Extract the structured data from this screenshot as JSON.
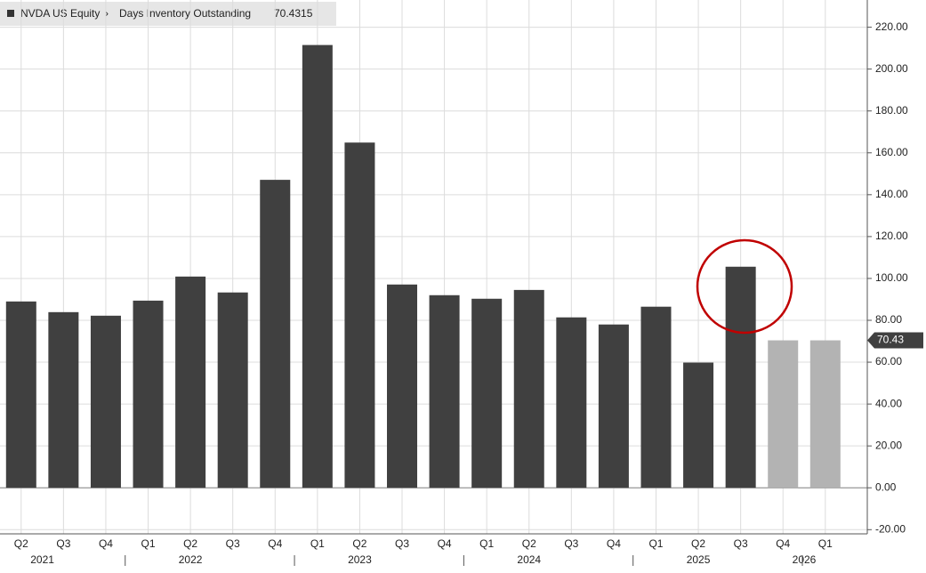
{
  "chart_data": {
    "type": "bar",
    "title": "NVDA US Equity",
    "subtitle": "Days Inventory Outstanding",
    "current_value": 70.4315,
    "current_label": "70.43",
    "categories": [
      "Q2",
      "Q3",
      "Q4",
      "Q1",
      "Q2",
      "Q3",
      "Q4",
      "Q1",
      "Q2",
      "Q3",
      "Q4",
      "Q1",
      "Q2",
      "Q3",
      "Q4",
      "Q1",
      "Q2",
      "Q3",
      "Q4",
      "Q1"
    ],
    "years": [
      {
        "label": "2021",
        "from": 0,
        "to": 2
      },
      {
        "label": "2022",
        "from": 3,
        "to": 6
      },
      {
        "label": "2023",
        "from": 7,
        "to": 10
      },
      {
        "label": "2024",
        "from": 11,
        "to": 14
      },
      {
        "label": "2025",
        "from": 15,
        "to": 18
      },
      {
        "label": "2026",
        "from": 19,
        "to": 19
      }
    ],
    "values": [
      89.0,
      83.9,
      82.2,
      89.4,
      100.9,
      93.3,
      147.1,
      211.5,
      164.9,
      97.1,
      92.0,
      90.3,
      94.5,
      81.4,
      78.0,
      86.5,
      59.8,
      105.6,
      70.4315,
      70.4315
    ],
    "colors": [
      "#404040",
      "#404040",
      "#404040",
      "#404040",
      "#404040",
      "#404040",
      "#404040",
      "#404040",
      "#404040",
      "#404040",
      "#404040",
      "#404040",
      "#404040",
      "#404040",
      "#404040",
      "#404040",
      "#404040",
      "#404040",
      "#b3b3b3",
      "#b3b3b3"
    ],
    "ylim": [
      -22,
      233
    ],
    "yticks": [
      {
        "value": -20,
        "label": "-20.00"
      },
      {
        "value": 0,
        "label": "0.00"
      },
      {
        "value": 20,
        "label": "20.00"
      },
      {
        "value": 40,
        "label": "40.00"
      },
      {
        "value": 60,
        "label": "60.00"
      },
      {
        "value": 80,
        "label": "80.00"
      },
      {
        "value": 100,
        "label": "100.00"
      },
      {
        "value": 120,
        "label": "120.00"
      },
      {
        "value": 140,
        "label": "140.00"
      },
      {
        "value": 160,
        "label": "160.00"
      },
      {
        "value": 180,
        "label": "180.00"
      },
      {
        "value": 200,
        "label": "200.00"
      },
      {
        "value": 220,
        "label": "220.00"
      }
    ],
    "grid": true
  }
}
